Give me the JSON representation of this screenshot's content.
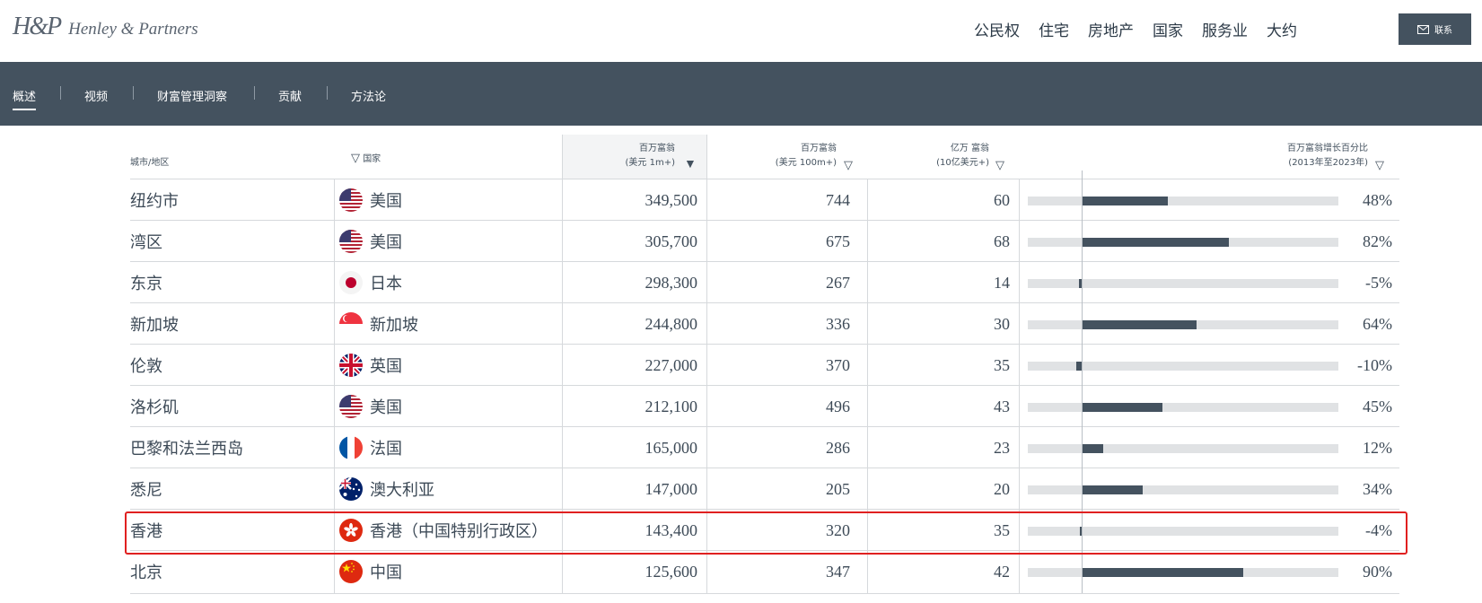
{
  "brand": {
    "mark": "H&P",
    "name": "Henley & Partners"
  },
  "topnav": [
    "公民权",
    "住宅",
    "房地产",
    "国家",
    "服务业",
    "大约"
  ],
  "contact_label": "联系",
  "subnav": [
    "概述",
    "视频",
    "财富管理洞察",
    "贡献",
    "方法论"
  ],
  "columns": {
    "city": "城市/地区",
    "country": "国家",
    "millionaires_l1": "百万富翁",
    "millionaires_l2": "(美元 1m+)",
    "centi_l1": "百万富翁",
    "centi_l2": "(美元 100m+)",
    "billi_l1": "亿万 富翁",
    "billi_l2": "(10亿美元+)",
    "growth_l1": "百万富翁增长百分比",
    "growth_l2": "(2013年至2023年)"
  },
  "rows": [
    {
      "city": "纽约市",
      "country": "美国",
      "flag": "us-flag-icon",
      "millionaires": "349,500",
      "centi": "744",
      "billi": "60",
      "growth": "48%",
      "growth_value": 48
    },
    {
      "city": "湾区",
      "country": "美国",
      "flag": "us-flag-icon",
      "millionaires": "305,700",
      "centi": "675",
      "billi": "68",
      "growth": "82%",
      "growth_value": 82
    },
    {
      "city": "东京",
      "country": "日本",
      "flag": "jp-flag-icon",
      "millionaires": "298,300",
      "centi": "267",
      "billi": "14",
      "growth": "-5%",
      "growth_value": -5
    },
    {
      "city": "新加坡",
      "country": "新加坡",
      "flag": "sg-flag-icon",
      "millionaires": "244,800",
      "centi": "336",
      "billi": "30",
      "growth": "64%",
      "growth_value": 64
    },
    {
      "city": "伦敦",
      "country": "英国",
      "flag": "uk-flag-icon",
      "millionaires": "227,000",
      "centi": "370",
      "billi": "35",
      "growth": "-10%",
      "growth_value": -10
    },
    {
      "city": "洛杉矶",
      "country": "美国",
      "flag": "us-flag-icon",
      "millionaires": "212,100",
      "centi": "496",
      "billi": "43",
      "growth": "45%",
      "growth_value": 45
    },
    {
      "city": "巴黎和法兰西岛",
      "country": "法国",
      "flag": "fr-flag-icon",
      "millionaires": "165,000",
      "centi": "286",
      "billi": "23",
      "growth": "12%",
      "growth_value": 12
    },
    {
      "city": "悉尼",
      "country": "澳大利亚",
      "flag": "au-flag-icon",
      "millionaires": "147,000",
      "centi": "205",
      "billi": "20",
      "growth": "34%",
      "growth_value": 34
    },
    {
      "city": "香港",
      "country": "香港（中国特别行政区）",
      "flag": "hk-flag-icon",
      "millionaires": "143,400",
      "centi": "320",
      "billi": "35",
      "growth": "-4%",
      "growth_value": -4
    },
    {
      "city": "北京",
      "country": "中国",
      "flag": "cn-flag-icon",
      "millionaires": "125,600",
      "centi": "347",
      "billi": "42",
      "growth": "90%",
      "growth_value": 90
    }
  ],
  "colors": {
    "navy": "#44525f",
    "highlight": "#e02020",
    "track": "#e0e2e4"
  }
}
